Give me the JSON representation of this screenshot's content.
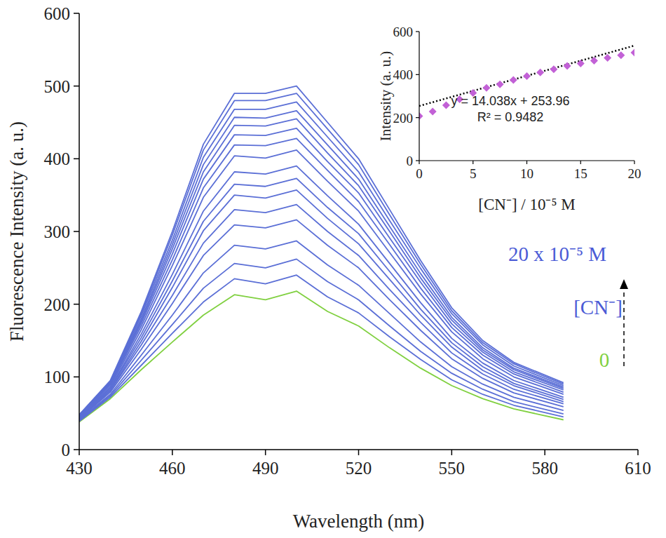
{
  "chart_data": [
    {
      "type": "line",
      "x_label": "Wavelength (nm)",
      "y_label": "Fluorescence Intensity (a. u.)",
      "x": [
        430,
        440,
        450,
        460,
        470,
        480,
        490,
        500,
        510,
        520,
        530,
        540,
        550,
        560,
        570,
        586
      ],
      "xlim": [
        430,
        610
      ],
      "xticks": [
        430,
        460,
        490,
        520,
        550,
        580,
        610
      ],
      "ylim": [
        0,
        600
      ],
      "yticks": [
        0,
        100,
        200,
        300,
        400,
        500,
        600
      ],
      "series": [
        {
          "color": "#80d040",
          "values": [
            38,
            70,
            110,
            148,
            185,
            213,
            206,
            218,
            190,
            170,
            140,
            112,
            88,
            70,
            56,
            41
          ]
        },
        {
          "color": "#5b6fd6",
          "values": [
            39,
            72,
            116,
            160,
            203,
            235,
            228,
            240,
            210,
            188,
            155,
            124,
            96,
            76,
            61,
            45
          ]
        },
        {
          "color": "#5b6fd6",
          "values": [
            40,
            74,
            123,
            172,
            222,
            256,
            250,
            262,
            231,
            206,
            170,
            135,
            105,
            83,
            66,
            49
          ]
        },
        {
          "color": "#5b6fd6",
          "values": [
            41,
            76,
            130,
            185,
            243,
            281,
            276,
            287,
            254,
            226,
            187,
            148,
            114,
            90,
            72,
            54
          ]
        },
        {
          "color": "#5b6fd6",
          "values": [
            42,
            79,
            138,
            201,
            267,
            309,
            305,
            316,
            281,
            250,
            206,
            164,
            125,
            98,
            78,
            59
          ]
        },
        {
          "color": "#5b6fd6",
          "values": [
            42,
            81,
            144,
            212,
            284,
            330,
            326,
            337,
            300,
            267,
            220,
            175,
            133,
            104,
            83,
            63
          ]
        },
        {
          "color": "#5b6fd6",
          "values": [
            43,
            82,
            149,
            223,
            301,
            350,
            346,
            357,
            318,
            283,
            234,
            185,
            141,
            109,
            88,
            66
          ]
        },
        {
          "color": "#5b6fd6",
          "values": [
            44,
            84,
            154,
            232,
            314,
            365,
            362,
            373,
            333,
            297,
            245,
            193,
            147,
            114,
            91,
            69
          ]
        },
        {
          "color": "#5b6fd6",
          "values": [
            44,
            85,
            159,
            241,
            328,
            382,
            379,
            390,
            349,
            310,
            256,
            202,
            153,
            119,
            95,
            72
          ]
        },
        {
          "color": "#5b6fd6",
          "values": [
            45,
            87,
            165,
            253,
            347,
            404,
            401,
            412,
            369,
            328,
            271,
            214,
            162,
            125,
            100,
            76
          ]
        },
        {
          "color": "#5b6fd6",
          "values": [
            46,
            89,
            170,
            261,
            360,
            419,
            418,
            428,
            384,
            341,
            282,
            222,
            168,
            130,
            104,
            79
          ]
        },
        {
          "color": "#5b6fd6",
          "values": [
            46,
            90,
            174,
            269,
            372,
            433,
            432,
            442,
            396,
            353,
            291,
            230,
            173,
            134,
            107,
            82
          ]
        },
        {
          "color": "#5b6fd6",
          "values": [
            46,
            91,
            177,
            276,
            382,
            446,
            445,
            455,
            408,
            363,
            300,
            236,
            178,
            137,
            110,
            84
          ]
        },
        {
          "color": "#5b6fd6",
          "values": [
            47,
            92,
            180,
            282,
            392,
            457,
            456,
            466,
            419,
            372,
            307,
            242,
            182,
            140,
            112,
            86
          ]
        },
        {
          "color": "#5b6fd6",
          "values": [
            47,
            93,
            184,
            288,
            402,
            468,
            468,
            478,
            430,
            382,
            315,
            249,
            187,
            144,
            115,
            88
          ]
        },
        {
          "color": "#5b6fd6",
          "values": [
            48,
            94,
            187,
            295,
            412,
            480,
            480,
            490,
            441,
            392,
            323,
            255,
            191,
            147,
            118,
            90
          ]
        },
        {
          "color": "#5b6fd6",
          "values": [
            48,
            95,
            190,
            300,
            420,
            490,
            490,
            500,
            450,
            400,
            330,
            260,
            195,
            150,
            120,
            92
          ]
        }
      ],
      "annotations": [
        {
          "text": "20 x 10⁻⁵ M",
          "color": "#4b5bd6"
        },
        {
          "text": "[CN⁻]",
          "color": "#4b5bd6"
        },
        {
          "text": "0",
          "color": "#80d040"
        }
      ]
    },
    {
      "type": "scatter",
      "x_label": "[CN⁻] / 10⁻⁵ M",
      "y_label": "Intensity (a. u.)",
      "x": [
        0,
        1.25,
        2.5,
        3.75,
        5,
        6.25,
        7.5,
        8.75,
        10,
        11.25,
        12.5,
        13.75,
        15,
        16.25,
        17.5,
        18.75,
        20
      ],
      "values": [
        207,
        228,
        258,
        285,
        315,
        338,
        355,
        375,
        393,
        410,
        425,
        440,
        452,
        465,
        478,
        490,
        502
      ],
      "color": "#c261d6",
      "marker": "diamond",
      "xlim": [
        0,
        20
      ],
      "xticks": [
        0,
        5,
        10,
        15,
        20
      ],
      "ylim": [
        0,
        600
      ],
      "yticks": [
        0,
        200,
        400,
        600
      ],
      "trendline": {
        "slope": 14.038,
        "intercept": 253.96,
        "color": "#000000",
        "line_style": "dotted"
      },
      "annotations": [
        {
          "text": "y = 14.038x + 253.96"
        },
        {
          "text": "R² = 0.9482"
        }
      ]
    }
  ]
}
